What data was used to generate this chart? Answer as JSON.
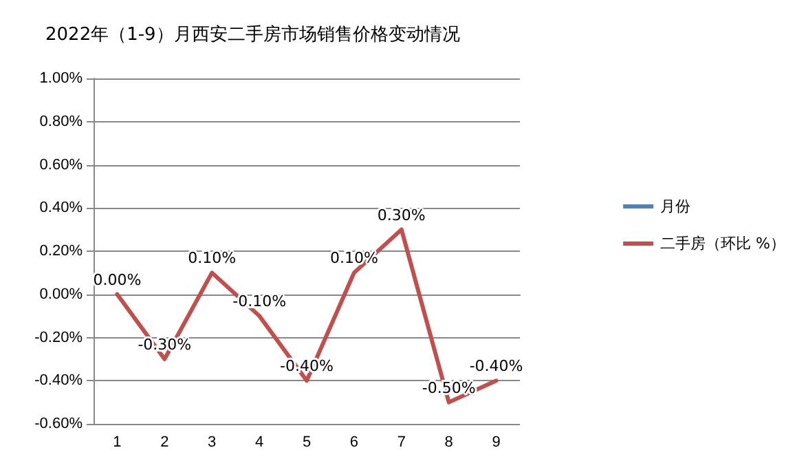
{
  "chart_data": {
    "type": "line",
    "title": "2022年（1-9）月西安二手房市场销售价格变动情况",
    "categories": [
      "1",
      "2",
      "3",
      "4",
      "5",
      "6",
      "7",
      "8",
      "9"
    ],
    "series": [
      {
        "name": "月份",
        "color": "#4f81bd",
        "values": [
          null,
          null,
          null,
          null,
          null,
          null,
          null,
          null,
          null
        ]
      },
      {
        "name": "二手房（环比 %）",
        "color": "#c0504d",
        "values": [
          0,
          -0.3,
          0.1,
          -0.1,
          -0.4,
          0.1,
          0.3,
          -0.5,
          -0.4
        ],
        "value_labels": [
          "0.00%",
          "-0.30%",
          "0.10%",
          "-0.10%",
          "-0.40%",
          "0.10%",
          "0.30%",
          "-0.50%",
          "-0.40%"
        ]
      }
    ],
    "ylim": [
      -0.6,
      1.0
    ],
    "yticks": [
      {
        "value": -0.6,
        "label": "-0.60%"
      },
      {
        "value": -0.4,
        "label": "-0.40%"
      },
      {
        "value": -0.2,
        "label": "-0.20%"
      },
      {
        "value": 0,
        "label": "0.00%"
      },
      {
        "value": 0.2,
        "label": "0.20%"
      },
      {
        "value": 0.4,
        "label": "0.40%"
      },
      {
        "value": 0.6,
        "label": "0.60%"
      },
      {
        "value": 0.8,
        "label": "0.80%"
      },
      {
        "value": 1.0,
        "label": "1.00%"
      }
    ],
    "grid": "y",
    "legend": "right",
    "marker": "none",
    "line_style": "solid"
  }
}
